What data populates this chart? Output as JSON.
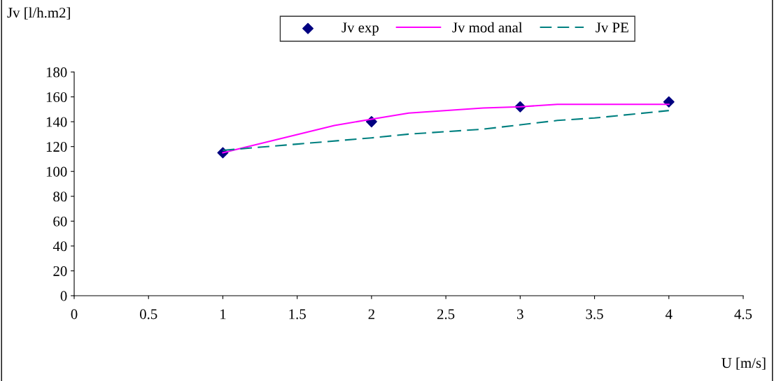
{
  "chart_data": {
    "type": "line",
    "xlabel": "U [m/s]",
    "ylabel": "Jv [l/h.m2]",
    "xlim": [
      0,
      4.5
    ],
    "xticks": [
      0,
      0.5,
      1,
      1.5,
      2,
      2.5,
      3,
      3.5,
      4,
      4.5
    ],
    "ylim": [
      0,
      180
    ],
    "yticks": [
      0,
      20,
      40,
      60,
      80,
      100,
      120,
      140,
      160,
      180
    ],
    "grid": false,
    "legend": "top",
    "series": [
      {
        "name": "Jv exp",
        "type": "scatter",
        "color": "#000080",
        "marker": "diamond",
        "x": [
          1,
          2,
          3,
          4
        ],
        "values": [
          115,
          140,
          152,
          156
        ]
      },
      {
        "name": "Jv mod anal",
        "color": "#ff00ff",
        "line_style": "solid",
        "x": [
          1,
          1.75,
          2,
          2.25,
          2.75,
          3,
          3.25,
          4
        ],
        "values": [
          115,
          137,
          142,
          147,
          151,
          152,
          154,
          154
        ]
      },
      {
        "name": "Jv PE",
        "color": "#008080",
        "line_style": "dashed",
        "x": [
          1,
          1.5,
          2,
          2.25,
          2.75,
          3.25,
          3.5,
          4
        ],
        "values": [
          117,
          122,
          127,
          130,
          134,
          141,
          143,
          149
        ]
      }
    ]
  }
}
